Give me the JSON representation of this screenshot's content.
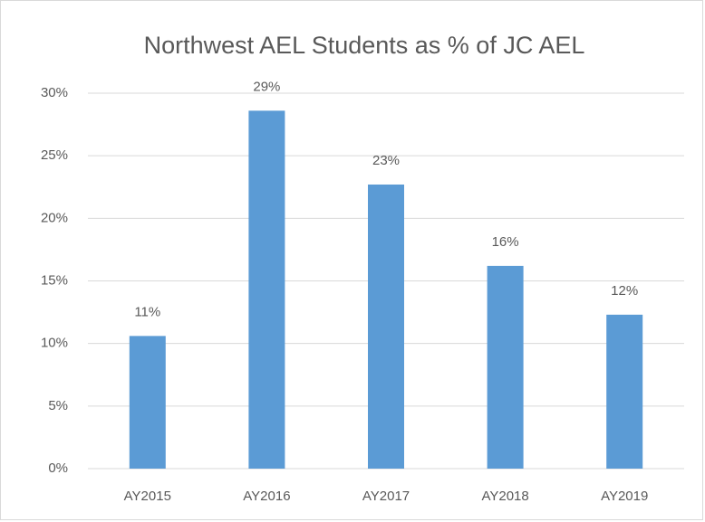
{
  "chart_data": {
    "type": "bar",
    "title": "Northwest AEL Students as % of JC AEL",
    "categories": [
      "AY2015",
      "AY2016",
      "AY2017",
      "AY2018",
      "AY2019"
    ],
    "values": [
      10.6,
      28.6,
      22.7,
      16.2,
      12.3
    ],
    "value_labels": [
      "11%",
      "29%",
      "23%",
      "16%",
      "12%"
    ],
    "color": "#5b9bd5",
    "ylim": [
      0,
      30
    ],
    "yticks": [
      {
        "value": 0,
        "label": "0%"
      },
      {
        "value": 5,
        "label": "5%"
      },
      {
        "value": 10,
        "label": "10%"
      },
      {
        "value": 15,
        "label": "15%"
      },
      {
        "value": 20,
        "label": "20%"
      },
      {
        "value": 25,
        "label": "25%"
      },
      {
        "value": 30,
        "label": "30%"
      }
    ],
    "grid": true
  }
}
